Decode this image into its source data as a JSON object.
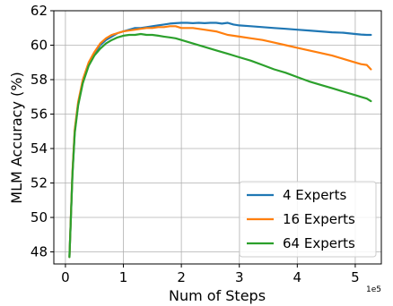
{
  "chart_data": {
    "type": "line",
    "xlabel": "Num of Steps",
    "ylabel": "MLM Accuracy (%)",
    "x_offset_text": "1e5",
    "xlim": [
      -0.2,
      5.45
    ],
    "ylim": [
      47.3,
      62.0
    ],
    "xticks": [
      0,
      1,
      2,
      3,
      4,
      5
    ],
    "xtick_labels": [
      "0",
      "1",
      "2",
      "3",
      "4",
      "5"
    ],
    "yticks": [
      48,
      50,
      52,
      54,
      56,
      58,
      60,
      62
    ],
    "ytick_labels": [
      "48",
      "50",
      "52",
      "54",
      "56",
      "58",
      "60",
      "62"
    ],
    "grid": true,
    "legend_position": "lower-right",
    "series": [
      {
        "name": "4 Experts",
        "color": "#1f77b4",
        "x": [
          0.07,
          0.12,
          0.16,
          0.22,
          0.3,
          0.4,
          0.5,
          0.6,
          0.7,
          0.8,
          0.9,
          1.0,
          1.1,
          1.2,
          1.3,
          1.4,
          1.5,
          1.6,
          1.7,
          1.8,
          1.9,
          2.0,
          2.1,
          2.2,
          2.3,
          2.4,
          2.5,
          2.6,
          2.7,
          2.8,
          2.9,
          3.0,
          3.2,
          3.4,
          3.6,
          3.8,
          4.0,
          4.2,
          4.4,
          4.6,
          4.8,
          5.0,
          5.1,
          5.2,
          5.27
        ],
        "values": [
          47.7,
          52.5,
          55.0,
          56.6,
          57.9,
          58.9,
          59.5,
          60.0,
          60.3,
          60.5,
          60.7,
          60.8,
          60.9,
          61.0,
          61.0,
          61.05,
          61.1,
          61.15,
          61.2,
          61.25,
          61.28,
          61.3,
          61.3,
          61.28,
          61.3,
          61.28,
          61.3,
          61.3,
          61.25,
          61.3,
          61.2,
          61.15,
          61.1,
          61.05,
          61.0,
          60.95,
          60.9,
          60.85,
          60.8,
          60.75,
          60.72,
          60.65,
          60.62,
          60.6,
          60.6
        ]
      },
      {
        "name": "16 Experts",
        "color": "#ff7f0e",
        "x": [
          0.07,
          0.12,
          0.16,
          0.22,
          0.3,
          0.4,
          0.5,
          0.6,
          0.7,
          0.8,
          0.9,
          1.0,
          1.1,
          1.2,
          1.3,
          1.4,
          1.5,
          1.6,
          1.7,
          1.8,
          1.9,
          2.0,
          2.2,
          2.4,
          2.6,
          2.8,
          3.0,
          3.2,
          3.4,
          3.6,
          3.8,
          4.0,
          4.2,
          4.4,
          4.6,
          4.8,
          5.0,
          5.1,
          5.2,
          5.27
        ],
        "values": [
          47.7,
          52.6,
          55.1,
          56.7,
          58.0,
          59.0,
          59.6,
          60.1,
          60.4,
          60.6,
          60.7,
          60.8,
          60.85,
          60.9,
          60.95,
          61.0,
          61.0,
          61.05,
          61.05,
          61.1,
          61.1,
          61.0,
          61.0,
          60.9,
          60.8,
          60.6,
          60.5,
          60.4,
          60.3,
          60.15,
          60.0,
          59.85,
          59.7,
          59.55,
          59.4,
          59.2,
          59.0,
          58.9,
          58.85,
          58.6
        ]
      },
      {
        "name": "64 Experts",
        "color": "#2ca02c",
        "x": [
          0.07,
          0.12,
          0.16,
          0.22,
          0.3,
          0.4,
          0.5,
          0.6,
          0.7,
          0.8,
          0.9,
          1.0,
          1.1,
          1.2,
          1.3,
          1.4,
          1.5,
          1.6,
          1.7,
          1.8,
          1.9,
          2.0,
          2.2,
          2.4,
          2.6,
          2.8,
          3.0,
          3.2,
          3.4,
          3.6,
          3.8,
          4.0,
          4.2,
          4.4,
          4.6,
          4.8,
          5.0,
          5.1,
          5.2,
          5.27
        ],
        "values": [
          47.7,
          52.4,
          54.9,
          56.5,
          57.8,
          58.8,
          59.4,
          59.8,
          60.1,
          60.3,
          60.45,
          60.55,
          60.6,
          60.6,
          60.65,
          60.6,
          60.6,
          60.55,
          60.5,
          60.45,
          60.4,
          60.3,
          60.1,
          59.9,
          59.7,
          59.5,
          59.3,
          59.1,
          58.85,
          58.6,
          58.4,
          58.15,
          57.9,
          57.7,
          57.5,
          57.3,
          57.1,
          57.0,
          56.9,
          56.75
        ]
      }
    ]
  }
}
